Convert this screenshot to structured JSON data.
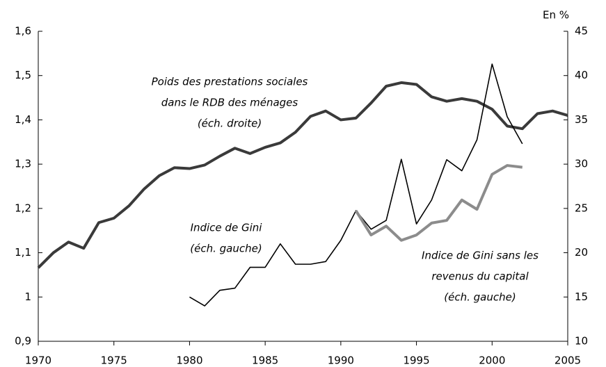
{
  "chart_data": {
    "type": "line",
    "y2_axis_label": "En %",
    "xlim": [
      1970,
      2005
    ],
    "xticks": [
      1970,
      1975,
      1980,
      1985,
      1990,
      1995,
      2000,
      2005
    ],
    "ylim": [
      0.9,
      1.6
    ],
    "yticks": [
      {
        "value": 0.9,
        "label": "0,9"
      },
      1,
      {
        "value": 1.1,
        "label": "1,1"
      },
      {
        "value": 1.2,
        "label": "1,2"
      },
      {
        "value": 1.3,
        "label": "1,3"
      },
      {
        "value": 1.4,
        "label": "1,4"
      },
      {
        "value": 1.5,
        "label": "1,5"
      },
      {
        "value": 1.6,
        "label": "1,6"
      }
    ],
    "y2lim": [
      10,
      45
    ],
    "y2ticks": [
      10,
      15,
      20,
      25,
      30,
      35,
      40,
      45
    ],
    "series": [
      {
        "label_lines": [
          "Poids des prestations sociales",
          "dans le RDB des ménages",
          "(éch. droite)"
        ],
        "color": "#3a3a3a",
        "width": 4,
        "axis": "y2",
        "x": [
          1970,
          1971,
          1972,
          1973,
          1974,
          1975,
          1976,
          1977,
          1978,
          1979,
          1980,
          1981,
          1982,
          1983,
          1984,
          1985,
          1986,
          1987,
          1988,
          1989,
          1990,
          1991,
          1992,
          1993,
          1994,
          1995,
          1996,
          1997,
          1998,
          1999,
          2000,
          2001,
          2002,
          2003,
          2004,
          2005
        ],
        "values": [
          18.3,
          20.0,
          21.2,
          20.5,
          23.4,
          23.9,
          25.3,
          27.2,
          28.7,
          29.6,
          29.5,
          29.9,
          30.9,
          31.8,
          31.2,
          31.9,
          32.4,
          33.6,
          35.4,
          36.0,
          35.0,
          35.2,
          36.9,
          38.8,
          39.2,
          39.0,
          37.6,
          37.1,
          37.4,
          37.1,
          36.2,
          34.3,
          34.0,
          35.7,
          36.0,
          35.5
        ]
      },
      {
        "label_lines": [
          "Indice de Gini",
          "(éch. gauche)"
        ],
        "color": "#000000",
        "width": 1.6,
        "axis": "y",
        "x": [
          1980,
          1981,
          1982,
          1983,
          1984,
          1985,
          1986,
          1987,
          1988,
          1989,
          1990,
          1991,
          1992,
          1993,
          1994,
          1995,
          1996,
          1997,
          1998,
          1999,
          2000,
          2001,
          2002
        ],
        "values": [
          1.0,
          0.98,
          1.015,
          1.02,
          1.067,
          1.067,
          1.12,
          1.074,
          1.074,
          1.08,
          1.128,
          1.195,
          1.153,
          1.173,
          1.311,
          1.165,
          1.219,
          1.31,
          1.285,
          1.355,
          1.526,
          1.407,
          1.346
        ]
      },
      {
        "label_lines": [
          "Indice de Gini sans les",
          "revenus du capital",
          "(éch. gauche)"
        ],
        "color": "#8c8c8c",
        "width": 4,
        "axis": "y",
        "x": [
          1991,
          1992,
          1993,
          1994,
          1995,
          1996,
          1997,
          1998,
          1999,
          2000,
          2001,
          2002
        ],
        "values": [
          1.195,
          1.14,
          1.16,
          1.128,
          1.14,
          1.167,
          1.173,
          1.219,
          1.198,
          1.277,
          1.297,
          1.293
        ]
      }
    ]
  }
}
